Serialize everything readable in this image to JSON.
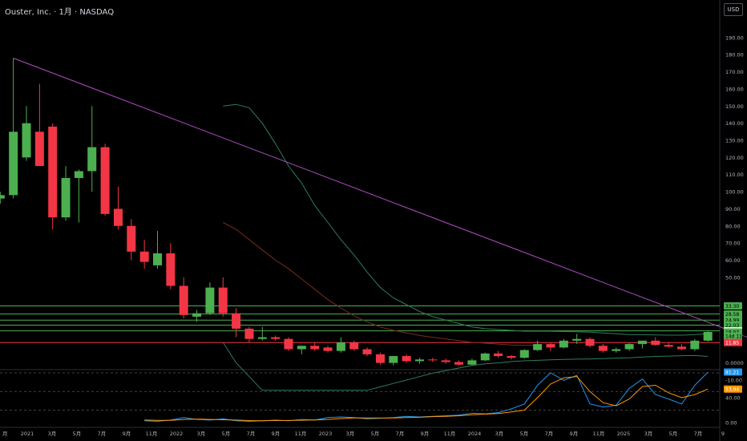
{
  "header": {
    "title": "Ouster, Inc. · 1月 · NASDAQ",
    "currency_label": "USD"
  },
  "colors": {
    "up": "#4caf50",
    "down": "#f23645",
    "trend": "#b04ec4",
    "band": "#2e7d5b",
    "mid": "#7a2a1f",
    "hgreen": "#4caf50",
    "hred": "#f23645",
    "rsi": "#2196f3",
    "rsi_ma": "#ff9800",
    "axis_text": "#b2b5be"
  },
  "chart_data": {
    "type": "candlestick",
    "ticker": "Ouster, Inc.",
    "interval": "1月",
    "exchange": "NASDAQ",
    "price_axis": {
      "ticks": [
        190,
        180,
        170,
        160,
        150,
        140,
        130,
        120,
        110,
        100,
        90,
        80,
        70,
        60,
        50
      ],
      "ticks_low": [
        "0.0000",
        "-10.00"
      ],
      "labels_extra": [
        {
          "text": "33.30",
          "color": "#4caf50",
          "price": 33.3
        },
        {
          "text": "28.58",
          "color": "#4caf50",
          "price": 28.58
        },
        {
          "text": "24.99",
          "color": "#4caf50",
          "price": 24.99
        },
        {
          "text": "22.03",
          "color": "#4caf50",
          "price": 22.03
        },
        {
          "text": "18.73",
          "color": "#ffffff",
          "price": 18.73
        },
        {
          "text": "18.07",
          "color": "#4caf50",
          "price": 18.07
        },
        {
          "text": "14d 11h",
          "color": "#4caf50",
          "price": 15.6
        },
        {
          "text": "11.85",
          "color": "#f23645",
          "price": 11.85
        }
      ]
    },
    "time_axis": [
      "月",
      "2021",
      "3月",
      "5月",
      "7月",
      "9月",
      "11月",
      "2022",
      "3月",
      "5月",
      "7月",
      "9月",
      "11月",
      "2023",
      "3月",
      "5月",
      "7月",
      "9月",
      "11月",
      "2024",
      "3月",
      "5月",
      "7月",
      "9月",
      "11月",
      "2025",
      "3月",
      "5月",
      "7月",
      "9"
    ],
    "candles": [
      {
        "o": 96,
        "h": 100,
        "l": 93,
        "c": 98
      },
      {
        "o": 98,
        "h": 178,
        "l": 96,
        "c": 135
      },
      {
        "o": 120,
        "h": 150,
        "l": 118,
        "c": 140
      },
      {
        "o": 135,
        "h": 163,
        "l": 115,
        "c": 115
      },
      {
        "o": 138,
        "h": 140,
        "l": 78,
        "c": 85
      },
      {
        "o": 85,
        "h": 115,
        "l": 83,
        "c": 108
      },
      {
        "o": 108,
        "h": 113,
        "l": 82,
        "c": 112
      },
      {
        "o": 112,
        "h": 150,
        "l": 100,
        "c": 126
      },
      {
        "o": 126,
        "h": 128,
        "l": 86,
        "c": 87
      },
      {
        "o": 90,
        "h": 103,
        "l": 78,
        "c": 80
      },
      {
        "o": 80,
        "h": 84,
        "l": 60,
        "c": 65
      },
      {
        "o": 65,
        "h": 72,
        "l": 55,
        "c": 59
      },
      {
        "o": 57,
        "h": 77,
        "l": 55,
        "c": 64
      },
      {
        "o": 64,
        "h": 70,
        "l": 43,
        "c": 45
      },
      {
        "o": 45,
        "h": 50,
        "l": 26,
        "c": 28
      },
      {
        "o": 27,
        "h": 31,
        "l": 24,
        "c": 29
      },
      {
        "o": 29,
        "h": 47,
        "l": 28,
        "c": 44
      },
      {
        "o": 44,
        "h": 50,
        "l": 27,
        "c": 29
      },
      {
        "o": 29,
        "h": 32,
        "l": 15,
        "c": 20
      },
      {
        "o": 20,
        "h": 21,
        "l": 12,
        "c": 14
      },
      {
        "o": 14,
        "h": 21,
        "l": 13,
        "c": 15
      },
      {
        "o": 15,
        "h": 16,
        "l": 13,
        "c": 14
      },
      {
        "o": 14,
        "h": 15,
        "l": 7,
        "c": 8
      },
      {
        "o": 8,
        "h": 10,
        "l": 5,
        "c": 10
      },
      {
        "o": 10,
        "h": 12,
        "l": 7,
        "c": 8
      },
      {
        "o": 9,
        "h": 10,
        "l": 6,
        "c": 7
      },
      {
        "o": 7,
        "h": 15,
        "l": 6,
        "c": 12
      },
      {
        "o": 12,
        "h": 13,
        "l": 7,
        "c": 8
      },
      {
        "o": 8,
        "h": 9,
        "l": 4,
        "c": 5
      },
      {
        "o": 5,
        "h": 6,
        "l": -1,
        "c": 0
      },
      {
        "o": 0,
        "h": 4,
        "l": -1.5,
        "c": 4
      },
      {
        "o": 4,
        "h": 5,
        "l": 0,
        "c": 1
      },
      {
        "o": 1,
        "h": 3,
        "l": -0.5,
        "c": 2
      },
      {
        "o": 2,
        "h": 3,
        "l": 0.5,
        "c": 1.5
      },
      {
        "o": 1.5,
        "h": 2.5,
        "l": -0.5,
        "c": 0.5
      },
      {
        "o": 0.5,
        "h": 1.5,
        "l": -1.5,
        "c": -1
      },
      {
        "o": -1,
        "h": 2.5,
        "l": -1.5,
        "c": 1.5
      },
      {
        "o": 1.5,
        "h": 6,
        "l": 1,
        "c": 5.5
      },
      {
        "o": 5.5,
        "h": 7,
        "l": 3,
        "c": 4
      },
      {
        "o": 4,
        "h": 4.5,
        "l": 2,
        "c": 3
      },
      {
        "o": 3,
        "h": 8,
        "l": 2.5,
        "c": 7.5
      },
      {
        "o": 7.5,
        "h": 13,
        "l": 7,
        "c": 11
      },
      {
        "o": 11,
        "h": 12,
        "l": 7,
        "c": 9
      },
      {
        "o": 9,
        "h": 14,
        "l": 8.5,
        "c": 13
      },
      {
        "o": 13,
        "h": 17,
        "l": 11,
        "c": 14
      },
      {
        "o": 14,
        "h": 15,
        "l": 9,
        "c": 10
      },
      {
        "o": 10,
        "h": 11,
        "l": 6,
        "c": 7
      },
      {
        "o": 7,
        "h": 9,
        "l": 6,
        "c": 8
      },
      {
        "o": 8,
        "h": 11.5,
        "l": 7,
        "c": 11
      },
      {
        "o": 11,
        "h": 13,
        "l": 8.5,
        "c": 13
      },
      {
        "o": 13,
        "h": 15,
        "l": 10,
        "c": 10.5
      },
      {
        "o": 10.5,
        "h": 12,
        "l": 9,
        "c": 9.5
      },
      {
        "o": 9.5,
        "h": 11,
        "l": 7.5,
        "c": 8
      },
      {
        "o": 8,
        "h": 14,
        "l": 7,
        "c": 13
      },
      {
        "o": 13,
        "h": 18.7,
        "l": 12.5,
        "c": 18.07
      }
    ],
    "trendline": {
      "start": {
        "index": 1,
        "price": 178
      },
      "end": {
        "index": 57,
        "price": 15
      }
    },
    "horizontal_lines": [
      {
        "price": 33.3,
        "color": "green"
      },
      {
        "price": 28.58,
        "color": "green"
      },
      {
        "price": 24.99,
        "color": "green"
      },
      {
        "price": 22.03,
        "color": "green"
      },
      {
        "price": 18.73,
        "color": "green"
      },
      {
        "price": 11.85,
        "color": "red"
      }
    ],
    "band_upper": [
      [
        17,
        150
      ],
      [
        18,
        151
      ],
      [
        19,
        149
      ],
      [
        20,
        140
      ],
      [
        21,
        128
      ],
      [
        22,
        115
      ],
      [
        23,
        105
      ],
      [
        24,
        92
      ],
      [
        25,
        82
      ],
      [
        26,
        72
      ],
      [
        27,
        63
      ],
      [
        28,
        53
      ],
      [
        29,
        44
      ],
      [
        30,
        38
      ],
      [
        31,
        34
      ],
      [
        32,
        30
      ],
      [
        33,
        27
      ],
      [
        34,
        25
      ],
      [
        35,
        23
      ],
      [
        36,
        21
      ],
      [
        37,
        20
      ],
      [
        38,
        19.5
      ],
      [
        39,
        19
      ],
      [
        40,
        18.5
      ],
      [
        41,
        18.5
      ],
      [
        42,
        18.5
      ],
      [
        43,
        18.3
      ],
      [
        44,
        18.2
      ],
      [
        45,
        18
      ],
      [
        46,
        17.5
      ],
      [
        47,
        17
      ],
      [
        48,
        16.5
      ],
      [
        49,
        16.5
      ],
      [
        50,
        16.3
      ],
      [
        51,
        16.2
      ],
      [
        52,
        16.2
      ],
      [
        53,
        16.5
      ],
      [
        54,
        17
      ]
    ],
    "band_mid": [
      [
        17,
        82
      ],
      [
        18,
        78
      ],
      [
        19,
        72
      ],
      [
        20,
        66
      ],
      [
        21,
        60
      ],
      [
        22,
        55
      ],
      [
        23,
        49
      ],
      [
        24,
        43
      ],
      [
        25,
        37
      ],
      [
        26,
        32
      ],
      [
        27,
        27.5
      ],
      [
        28,
        24
      ],
      [
        29,
        21
      ],
      [
        30,
        19
      ],
      [
        31,
        17.5
      ],
      [
        32,
        16
      ],
      [
        33,
        15
      ],
      [
        34,
        14
      ],
      [
        35,
        13
      ],
      [
        36,
        12
      ],
      [
        37,
        11.5
      ],
      [
        38,
        11
      ],
      [
        39,
        10.5
      ],
      [
        40,
        10.3
      ],
      [
        41,
        10.5
      ]
    ],
    "band_lower": [
      [
        17,
        12
      ],
      [
        18,
        0
      ],
      [
        19,
        -8
      ],
      [
        20,
        -16
      ],
      [
        28,
        -16
      ],
      [
        29,
        -14
      ],
      [
        30,
        -12
      ],
      [
        31,
        -10
      ],
      [
        32,
        -8
      ],
      [
        33,
        -6
      ],
      [
        34,
        -4.5
      ],
      [
        35,
        -3
      ],
      [
        36,
        -1.5
      ],
      [
        37,
        -0.5
      ],
      [
        38,
        0
      ],
      [
        39,
        0.8
      ],
      [
        40,
        1.2
      ],
      [
        41,
        1.5
      ],
      [
        42,
        1.8
      ],
      [
        43,
        2
      ],
      [
        44,
        2.2
      ],
      [
        45,
        2.3
      ],
      [
        46,
        2.5
      ],
      [
        47,
        2.8
      ],
      [
        48,
        3
      ],
      [
        49,
        3.4
      ],
      [
        50,
        3.8
      ],
      [
        51,
        4
      ],
      [
        52,
        4.2
      ],
      [
        53,
        4.3
      ],
      [
        54,
        3.8
      ]
    ],
    "rsi": {
      "labels": [
        {
          "text": "81.21",
          "color": "#2196f3",
          "value": 81.21
        },
        {
          "text": "53.94",
          "color": "#ff9800",
          "value": 53.94
        }
      ],
      "ticks": [
        "40.00",
        "0.00"
      ],
      "levels": [
        80,
        50,
        20
      ],
      "rsi_series": [
        [
          11,
          3
        ],
        [
          12,
          2
        ],
        [
          13,
          4
        ],
        [
          14,
          8
        ],
        [
          15,
          5
        ],
        [
          16,
          4
        ],
        [
          17,
          6
        ],
        [
          18,
          3
        ],
        [
          19,
          2
        ],
        [
          20,
          3
        ],
        [
          21,
          4
        ],
        [
          22,
          3
        ],
        [
          23,
          5
        ],
        [
          24,
          4
        ],
        [
          25,
          8
        ],
        [
          26,
          9
        ],
        [
          27,
          8
        ],
        [
          28,
          6
        ],
        [
          29,
          7
        ],
        [
          30,
          8
        ],
        [
          31,
          10
        ],
        [
          32,
          9
        ],
        [
          33,
          10
        ],
        [
          34,
          11
        ],
        [
          35,
          12
        ],
        [
          36,
          15
        ],
        [
          37,
          14
        ],
        [
          38,
          16
        ],
        [
          39,
          22
        ],
        [
          40,
          30
        ],
        [
          41,
          60
        ],
        [
          42,
          80
        ],
        [
          43,
          68
        ],
        [
          44,
          76
        ],
        [
          45,
          30
        ],
        [
          46,
          25
        ],
        [
          47,
          28
        ],
        [
          48,
          55
        ],
        [
          49,
          70
        ],
        [
          50,
          45
        ],
        [
          51,
          38
        ],
        [
          52,
          30
        ],
        [
          53,
          60
        ],
        [
          54,
          81.21
        ]
      ],
      "ma_series": [
        [
          11,
          4
        ],
        [
          12,
          3.5
        ],
        [
          13,
          3.5
        ],
        [
          14,
          5
        ],
        [
          15,
          5.5
        ],
        [
          16,
          5
        ],
        [
          17,
          4.5
        ],
        [
          18,
          4
        ],
        [
          19,
          3.2
        ],
        [
          20,
          3
        ],
        [
          21,
          3.2
        ],
        [
          22,
          3.4
        ],
        [
          23,
          3.8
        ],
        [
          24,
          4.2
        ],
        [
          25,
          5
        ],
        [
          26,
          6.5
        ],
        [
          27,
          7.5
        ],
        [
          28,
          7.5
        ],
        [
          29,
          7.2
        ],
        [
          30,
          7.3
        ],
        [
          31,
          8
        ],
        [
          32,
          8.5
        ],
        [
          33,
          9.5
        ],
        [
          34,
          10
        ],
        [
          35,
          11
        ],
        [
          36,
          12.5
        ],
        [
          37,
          13.5
        ],
        [
          38,
          14.5
        ],
        [
          39,
          17
        ],
        [
          40,
          20
        ],
        [
          41,
          40
        ],
        [
          42,
          62
        ],
        [
          43,
          72
        ],
        [
          44,
          74
        ],
        [
          45,
          50
        ],
        [
          46,
          32
        ],
        [
          47,
          27
        ],
        [
          48,
          38
        ],
        [
          49,
          58
        ],
        [
          50,
          60
        ],
        [
          51,
          48
        ],
        [
          52,
          40
        ],
        [
          53,
          45
        ],
        [
          54,
          53.94
        ]
      ]
    }
  }
}
